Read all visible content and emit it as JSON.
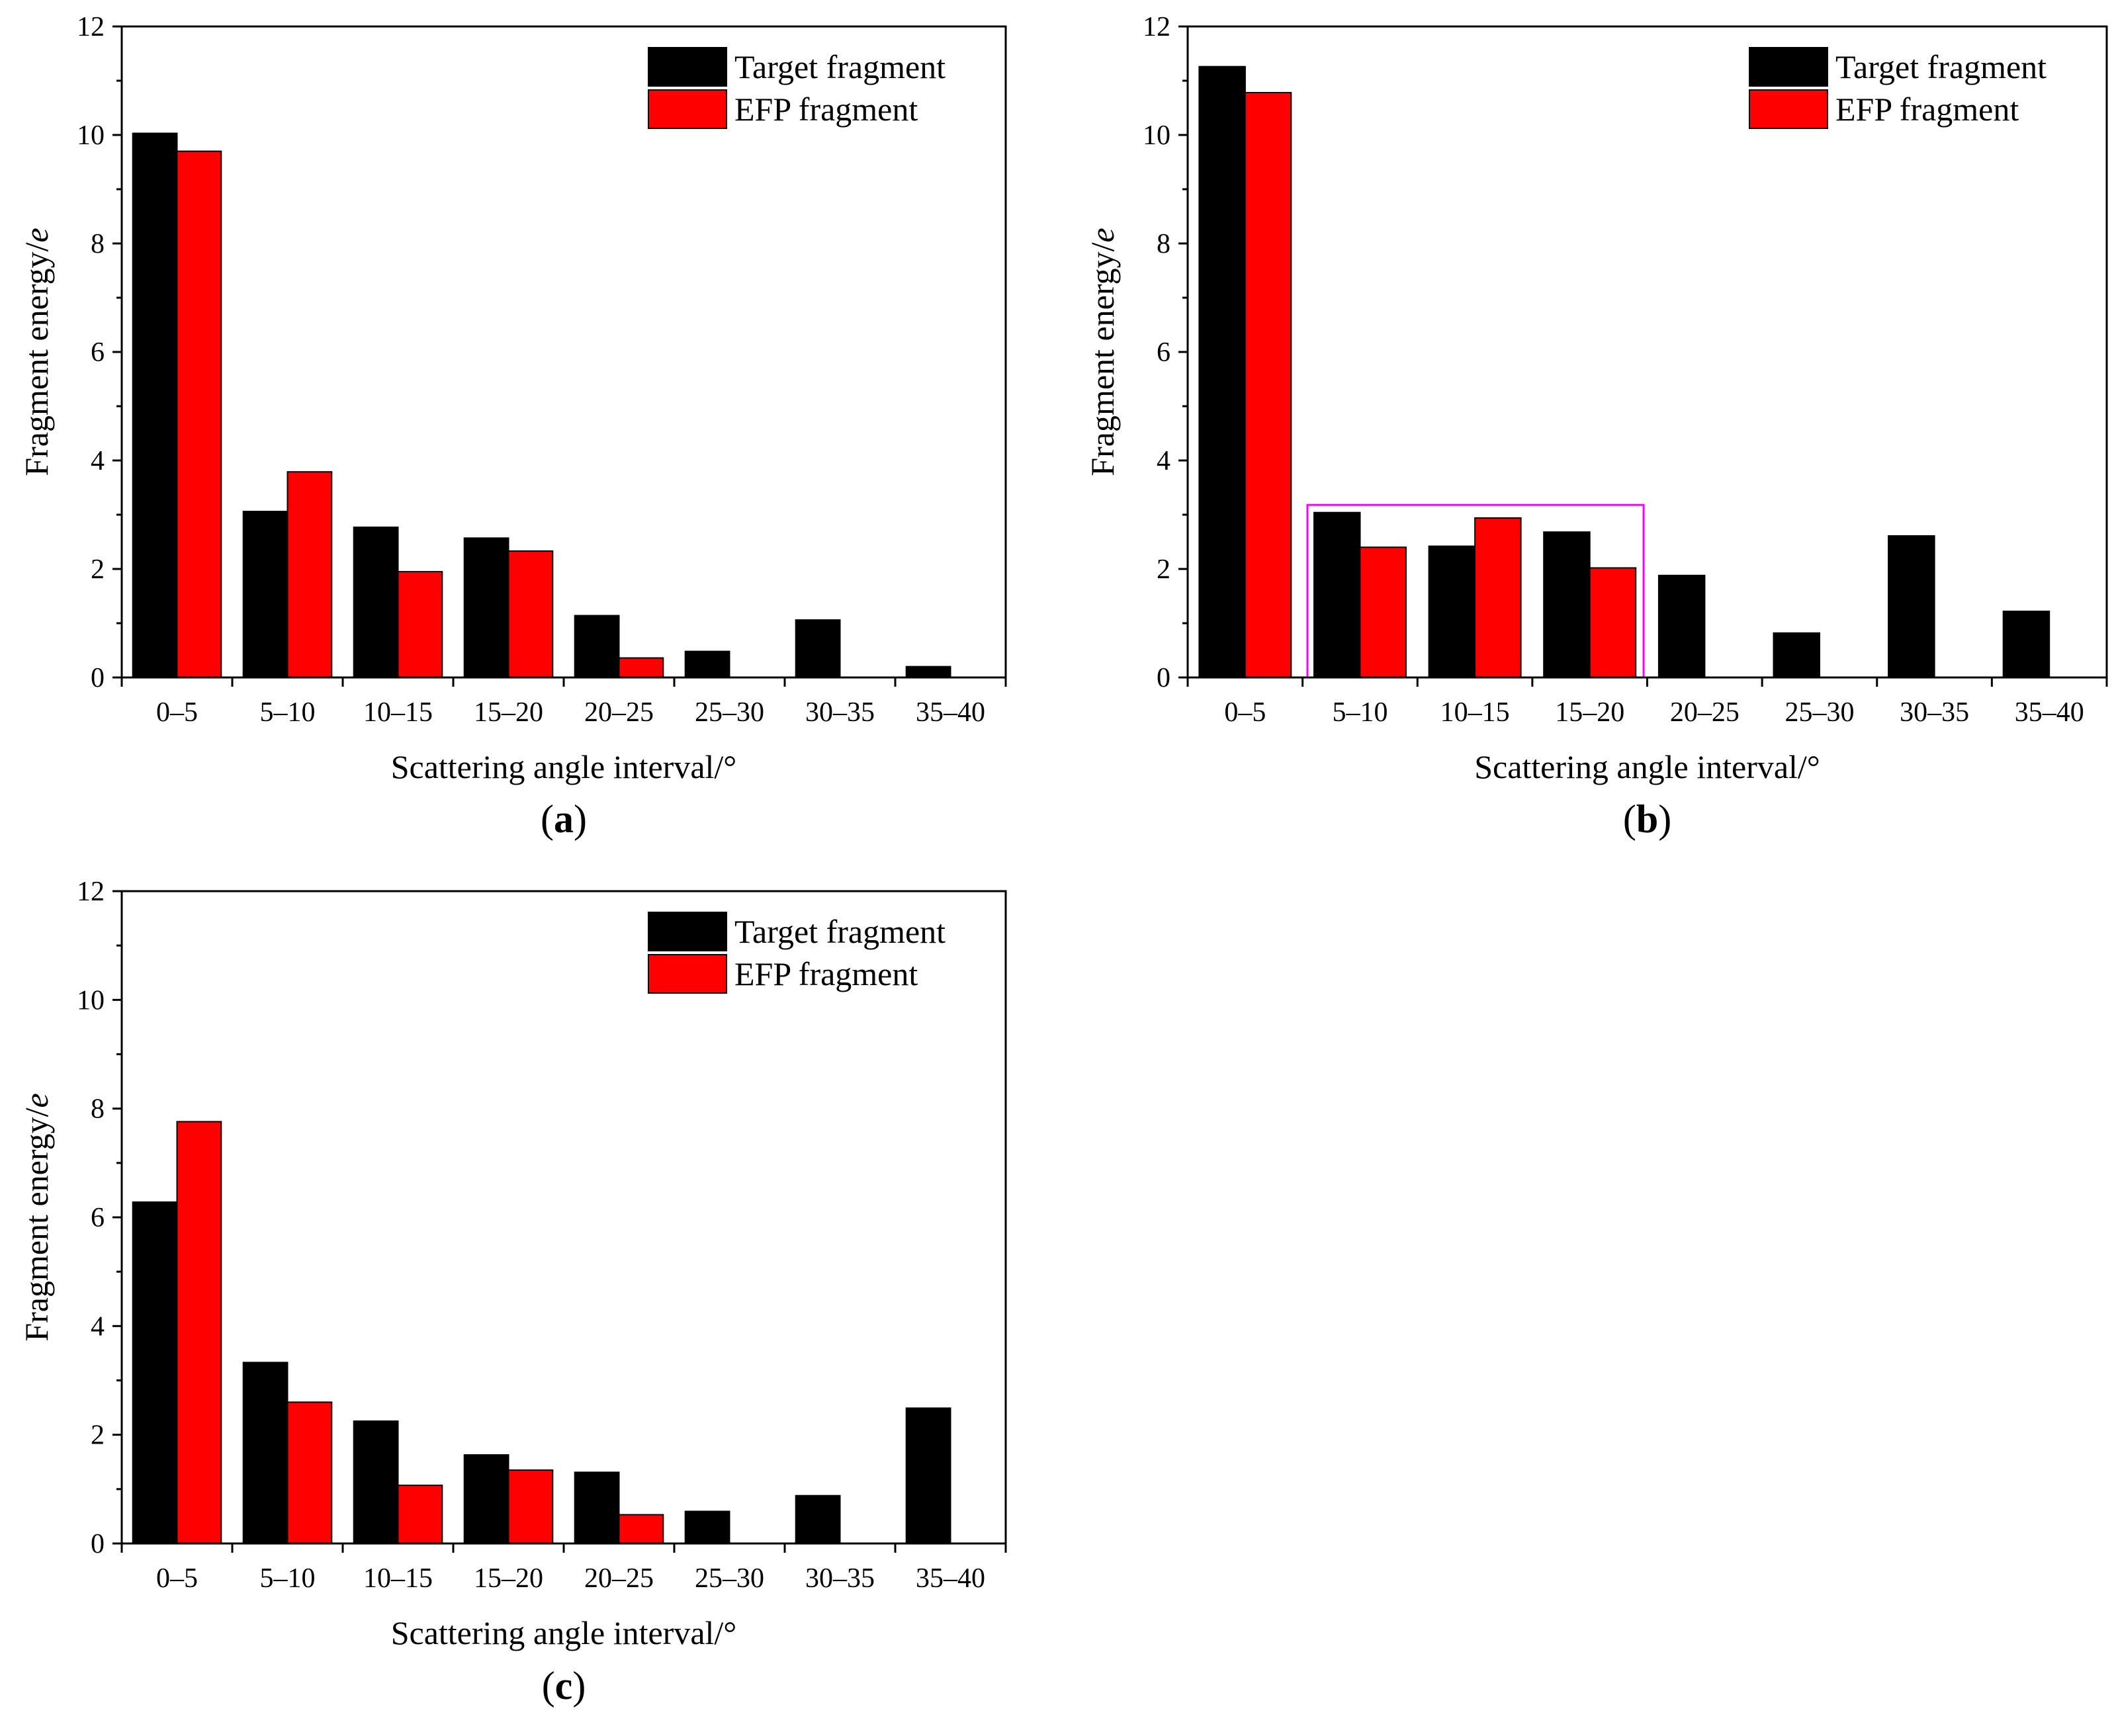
{
  "figure": {
    "colors": {
      "series_target": "#000000",
      "series_efp": "#ff0000",
      "highlight": "#ff00ff"
    }
  },
  "chart_data": [
    {
      "panel": "a",
      "panel_label": {
        "open": "(",
        "letter": "a",
        "close": ")"
      },
      "type": "bar",
      "title": "",
      "xlabel": "Scattering angle interval/°",
      "ylabel": {
        "main": "Fragment energy/",
        "unit": "e"
      },
      "ylim": [
        0,
        12
      ],
      "yticks": [
        0,
        2,
        4,
        6,
        8,
        10,
        12
      ],
      "legend": "top-right",
      "categories": [
        "0–5",
        "5–10",
        "10–15",
        "15–20",
        "20–25",
        "25–30",
        "30–35",
        "35–40"
      ],
      "series": [
        {
          "name": "Target fragment",
          "color": "#000000",
          "values": [
            10.03,
            3.06,
            2.77,
            2.57,
            1.14,
            0.48,
            1.06,
            0.2
          ]
        },
        {
          "name": "EFP fragment",
          "color": "#ff0000",
          "values": [
            9.7,
            3.79,
            1.95,
            2.33,
            0.36,
            0,
            0,
            0
          ]
        }
      ]
    },
    {
      "panel": "b",
      "panel_label": {
        "open": "(",
        "letter": "b",
        "close": ")"
      },
      "type": "bar",
      "title": "",
      "xlabel": "Scattering angle interval/°",
      "ylabel": {
        "main": "Fragment energy/",
        "unit": "e"
      },
      "ylim": [
        0,
        12
      ],
      "yticks": [
        0,
        2,
        4,
        6,
        8,
        10,
        12
      ],
      "legend": "top-right",
      "categories": [
        "0–5",
        "5–10",
        "10–15",
        "15–20",
        "20–25",
        "25–30",
        "30–35",
        "35–40"
      ],
      "series": [
        {
          "name": "Target fragment",
          "color": "#000000",
          "values": [
            11.26,
            3.04,
            2.42,
            2.68,
            1.88,
            0.82,
            2.61,
            1.22
          ]
        },
        {
          "name": "EFP fragment",
          "color": "#ff0000",
          "values": [
            10.78,
            2.4,
            2.94,
            2.02,
            0,
            0,
            0,
            0
          ]
        }
      ],
      "annotation": {
        "type": "highlight-box",
        "categories": [
          "5–10",
          "10–15",
          "15–20"
        ],
        "y_top": 3.18
      }
    },
    {
      "panel": "c",
      "panel_label": {
        "open": "(",
        "letter": "c",
        "close": ")"
      },
      "type": "bar",
      "title": "",
      "xlabel": "Scattering angle interval/°",
      "ylabel": {
        "main": "Fragment energy/",
        "unit": "e"
      },
      "ylim": [
        0,
        12
      ],
      "yticks": [
        0,
        2,
        4,
        6,
        8,
        10,
        12
      ],
      "legend": "top-right",
      "categories": [
        "0–5",
        "5–10",
        "10–15",
        "15–20",
        "20–25",
        "25–30",
        "30–35",
        "35–40"
      ],
      "series": [
        {
          "name": "Target fragment",
          "color": "#000000",
          "values": [
            6.28,
            3.33,
            2.25,
            1.63,
            1.31,
            0.59,
            0.88,
            2.49
          ]
        },
        {
          "name": "EFP fragment",
          "color": "#ff0000",
          "values": [
            7.76,
            2.6,
            1.07,
            1.35,
            0.53,
            0,
            0,
            0
          ]
        }
      ]
    }
  ]
}
